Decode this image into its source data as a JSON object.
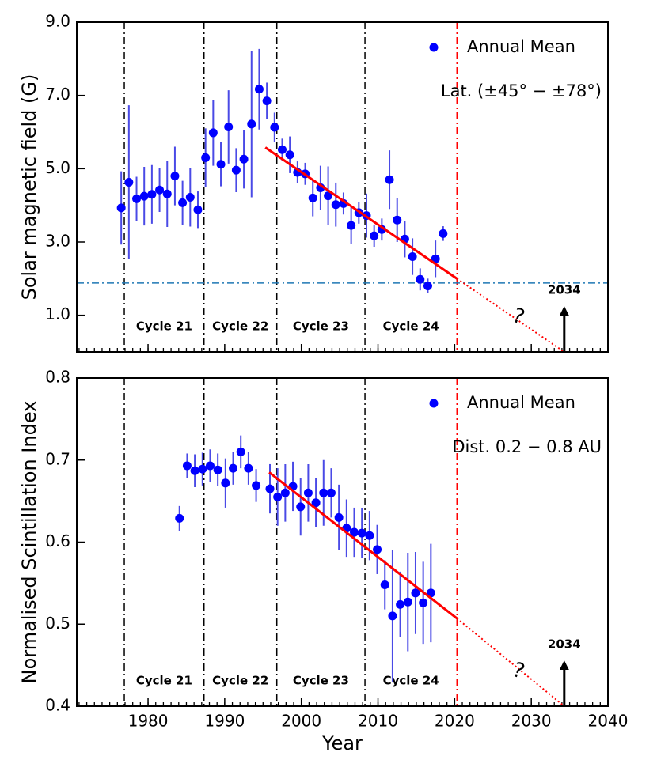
{
  "chart_data": [
    {
      "type": "scatter",
      "ylabel": "Solar magnetic field (G)",
      "subtitle": "Lat. (±45° − ±78°)",
      "xlim": [
        1970.7,
        2040
      ],
      "xticks": [
        1980,
        1990,
        2000,
        2010,
        2020,
        2030,
        2040
      ],
      "xtick_labels_visible": false,
      "xminor": 1,
      "ylim": [
        0,
        9.0
      ],
      "yticks": [
        {
          "value": 1,
          "label": "1.0"
        },
        {
          "value": 3,
          "label": "3.0"
        },
        {
          "value": 5,
          "label": "5.0"
        },
        {
          "value": 7,
          "label": "7.0"
        },
        {
          "value": 9,
          "label": "9.0"
        }
      ],
      "legend": "upper right",
      "series": [
        {
          "name": "Annual Mean",
          "color": "#0000ff",
          "error_color": "#4a4ae6",
          "x": [
            1976.5,
            1977.5,
            1978.5,
            1979.5,
            1980.5,
            1981.5,
            1982.5,
            1983.5,
            1984.5,
            1985.5,
            1986.5,
            1987.5,
            1988.5,
            1989.5,
            1990.5,
            1991.5,
            1992.5,
            1993.5,
            1994.5,
            1995.5,
            1996.5,
            1997.5,
            1998.5,
            1999.5,
            2000.5,
            2001.5,
            2002.5,
            2003.5,
            2004.5,
            2005.5,
            2006.5,
            2007.5,
            2008.5,
            2009.5,
            2010.5,
            2011.5,
            2012.5,
            2013.5,
            2014.5,
            2015.5,
            2016.5,
            2017.5,
            2018.5
          ],
          "values": [
            3.93,
            4.63,
            4.18,
            4.25,
            4.3,
            4.42,
            4.31,
            4.8,
            4.07,
            4.22,
            3.88,
            5.3,
            5.98,
            5.12,
            6.14,
            4.96,
            5.26,
            6.22,
            7.17,
            6.85,
            6.13,
            5.52,
            5.38,
            4.9,
            4.86,
            4.2,
            4.48,
            4.26,
            4.02,
            4.05,
            3.45,
            3.8,
            3.72,
            3.17,
            3.34,
            4.7,
            3.6,
            3.08,
            2.6,
            1.98,
            1.8,
            2.54,
            3.23
          ],
          "errors": [
            1.0,
            2.1,
            0.6,
            0.8,
            0.8,
            0.6,
            0.9,
            0.8,
            0.6,
            0.8,
            0.5,
            0.8,
            0.9,
            0.6,
            1.0,
            0.6,
            0.8,
            2.0,
            1.1,
            0.5,
            0.4,
            0.3,
            0.5,
            0.3,
            0.3,
            0.5,
            0.6,
            0.8,
            0.6,
            0.3,
            0.5,
            0.3,
            0.6,
            0.3,
            0.3,
            0.8,
            0.6,
            0.5,
            0.5,
            0.3,
            0.2,
            0.5,
            0.2
          ]
        }
      ],
      "fit": {
        "color": "#ff0000",
        "solid": [
          [
            1995.3,
            5.58
          ],
          [
            2020.3,
            2.0
          ]
        ],
        "dotted_end": [
          2034.3,
          0
        ]
      },
      "threshold": {
        "value": 1.88,
        "color": "#1f77b4"
      },
      "cycle_lines": [
        1976.9,
        1987.3,
        1996.8,
        2008.3
      ],
      "current_line": {
        "value": 2020.3,
        "color": "#ff0000"
      },
      "cycle_labels": [
        "Cycle 21",
        "Cycle 22",
        "Cycle 23",
        "Cycle 24"
      ],
      "prediction_label": "2034",
      "question": "?"
    },
    {
      "type": "scatter",
      "ylabel": "Normalised Scintillation Index",
      "xlabel": "Year",
      "subtitle": "Dist. 0.2 − 0.8 AU",
      "xlim": [
        1970.7,
        2040
      ],
      "xticks": [
        1980,
        1990,
        2000,
        2010,
        2020,
        2030,
        2040
      ],
      "xtick_labels_visible": true,
      "xminor": 1,
      "ylim": [
        0.4,
        0.8
      ],
      "yticks": [
        0.4,
        0.5,
        0.6,
        0.7,
        0.8
      ],
      "legend": "upper right",
      "series": [
        {
          "name": "Annual Mean",
          "color": "#0000ff",
          "error_color": "#4a4ae6",
          "x": [
            1984.1,
            1985.1,
            1986.1,
            1987.1,
            1988.1,
            1989.1,
            1990.1,
            1991.1,
            1992.1,
            1993.1,
            1994.1,
            1995.9,
            1996.9,
            1997.9,
            1998.9,
            1999.9,
            2000.9,
            2001.9,
            2002.9,
            2003.9,
            2004.9,
            2005.9,
            2006.9,
            2007.9,
            2008.9,
            2009.9,
            2010.9,
            2011.9,
            2012.9,
            2013.9,
            2014.9,
            2015.9,
            2016.9
          ],
          "values": [
            0.629,
            0.693,
            0.687,
            0.689,
            0.693,
            0.688,
            0.672,
            0.69,
            0.71,
            0.69,
            0.669,
            0.665,
            0.655,
            0.66,
            0.668,
            0.643,
            0.66,
            0.648,
            0.66,
            0.66,
            0.63,
            0.617,
            0.612,
            0.611,
            0.608,
            0.591,
            0.548,
            0.51,
            0.524,
            0.527,
            0.538,
            0.526,
            0.538
          ],
          "errors": [
            0.015,
            0.015,
            0.02,
            0.02,
            0.02,
            0.02,
            0.03,
            0.02,
            0.02,
            0.02,
            0.02,
            0.03,
            0.035,
            0.035,
            0.03,
            0.035,
            0.035,
            0.03,
            0.04,
            0.03,
            0.04,
            0.035,
            0.03,
            0.03,
            0.03,
            0.03,
            0.03,
            0.08,
            0.04,
            0.06,
            0.05,
            0.05,
            0.06
          ]
        }
      ],
      "fit": {
        "color": "#ff0000",
        "solid": [
          [
            1995.8,
            0.685
          ],
          [
            2020.3,
            0.507
          ]
        ],
        "dotted_end": [
          2034.3,
          0.4
        ]
      },
      "cycle_lines": [
        1976.9,
        1987.3,
        1996.8,
        2008.3
      ],
      "current_line": {
        "value": 2020.3,
        "color": "#ff0000"
      },
      "cycle_labels": [
        "Cycle 21",
        "Cycle 22",
        "Cycle 23",
        "Cycle 24"
      ],
      "prediction_label": "2034",
      "question": "?"
    }
  ]
}
